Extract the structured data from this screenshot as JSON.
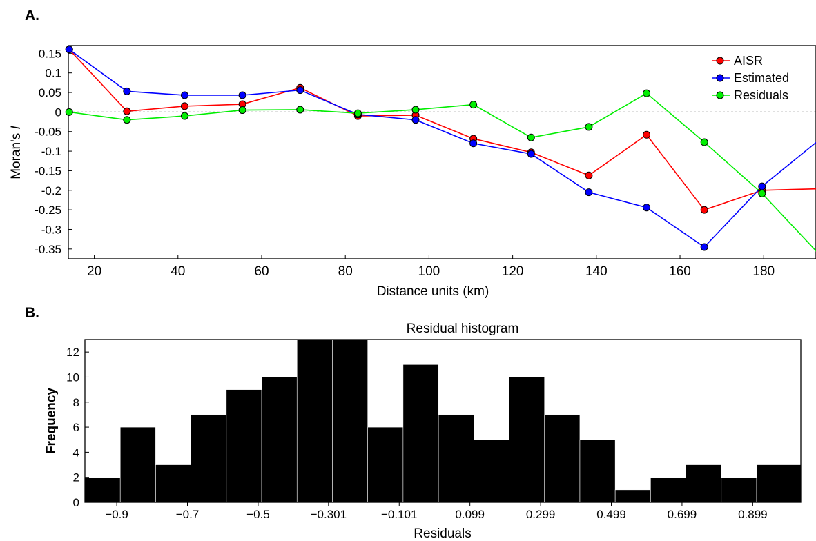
{
  "chart_data": [
    {
      "panel": "A.",
      "type": "line",
      "title": "",
      "xlabel": "Distance units (km)",
      "ylabel_main": "Moran's ",
      "ylabel_italic": "I",
      "xlim": [
        13.8,
        192.5
      ],
      "ylim": [
        -0.375,
        0.17
      ],
      "xticks": [
        20,
        40,
        60,
        80,
        100,
        120,
        140,
        160,
        180
      ],
      "yticks": [
        0.15,
        0.1,
        0.05,
        0,
        -0.05,
        -0.1,
        -0.15,
        -0.2,
        -0.25,
        -0.3,
        -0.35
      ],
      "ytick_labels": [
        "0.15",
        "0.1",
        "0.05",
        "0",
        "-0.05",
        "-0.1",
        "-0.15",
        "-0.2",
        "-0.25",
        "-0.3",
        "-0.35"
      ],
      "reference_line": 0,
      "legend_position": "top-right",
      "x": [
        14,
        27.8,
        41.6,
        55.4,
        69.2,
        83,
        96.8,
        110.6,
        124.4,
        138.2,
        152,
        165.8,
        179.6,
        193.4
      ],
      "series": [
        {
          "name": "AISR",
          "color": "#ff0000",
          "values": [
            0.16,
            0.002,
            0.015,
            0.02,
            0.062,
            -0.01,
            -0.008,
            -0.068,
            -0.103,
            -0.162,
            -0.058,
            -0.25,
            -0.2,
            -0.196
          ]
        },
        {
          "name": "Estimated",
          "color": "#0000ff",
          "values": [
            0.16,
            0.053,
            0.043,
            0.043,
            0.056,
            -0.006,
            -0.02,
            -0.08,
            -0.107,
            -0.205,
            -0.244,
            -0.345,
            -0.19,
            -0.07
          ]
        },
        {
          "name": "Residuals",
          "color": "#00ee00",
          "values": [
            0,
            -0.02,
            -0.01,
            0.005,
            0.006,
            -0.003,
            0.006,
            0.019,
            -0.065,
            -0.038,
            0.048,
            -0.077,
            -0.208,
            -0.365
          ]
        }
      ]
    },
    {
      "panel": "B.",
      "type": "bar",
      "title": "Residual histogram",
      "title_color": "#0000ff",
      "xlabel": "Residuals",
      "ylabel": "Frequency",
      "xlim": [
        -0.99,
        1.035
      ],
      "ylim": [
        0,
        13
      ],
      "yticks": [
        0,
        2,
        4,
        6,
        8,
        10,
        12
      ],
      "xtick_values": [
        -0.9,
        -0.7,
        -0.5,
        -0.301,
        -0.101,
        0.099,
        0.299,
        0.499,
        0.699,
        0.899
      ],
      "xtick_labels": [
        "−0.9",
        "−0.7",
        "−0.5",
        "−0.301",
        "−0.101",
        "0.099",
        "0.299",
        "0.499",
        "0.699",
        "0.899"
      ],
      "bin_edges": [
        -0.99,
        -0.89,
        -0.79,
        -0.69,
        -0.59,
        -0.49,
        -0.39,
        -0.29,
        -0.19,
        -0.09,
        0.01,
        0.11,
        0.21,
        0.31,
        0.41,
        0.51,
        0.61,
        0.71,
        0.81,
        0.91,
        1.035
      ],
      "values": [
        2,
        6,
        3,
        7,
        9,
        10,
        13,
        13,
        6,
        11,
        7,
        5,
        10,
        7,
        5,
        1,
        2,
        3,
        2,
        3
      ],
      "bar_color": "#000000"
    }
  ]
}
